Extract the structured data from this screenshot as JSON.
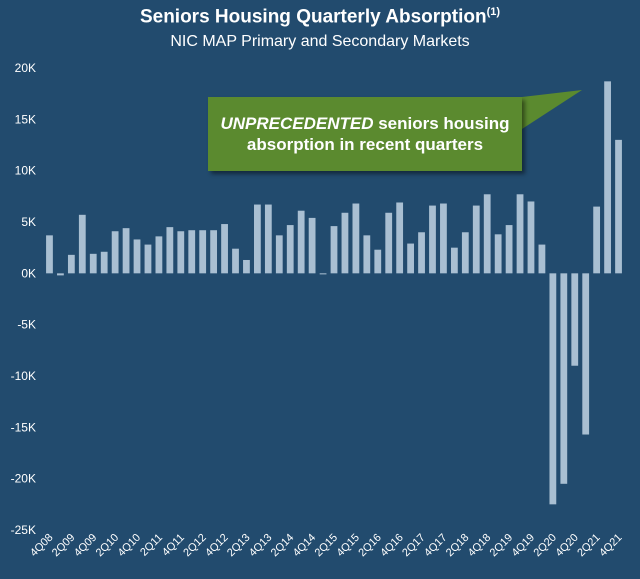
{
  "title": "Seniors Housing Quarterly Absorption",
  "title_note": "(1)",
  "subtitle": "NIC MAP Primary and Secondary Markets",
  "callout": {
    "emphasis": "UNPRECEDENTED",
    "line1_rest": " seniors housing",
    "line2": "absorption in recent quarters"
  },
  "colors": {
    "background": "#224b6e",
    "bar": "#a9bfd2",
    "callout": "#5b8a2f",
    "axis_text": "#ffffff"
  },
  "chart_data": {
    "type": "bar",
    "title": "Seniors Housing Quarterly Absorption",
    "subtitle": "NIC MAP Primary and Secondary Markets",
    "xlabel": "",
    "ylabel": "",
    "ylim": [
      -25000,
      20000
    ],
    "yticks": [
      20000,
      15000,
      10000,
      5000,
      0,
      -5000,
      -10000,
      -15000,
      -20000,
      -25000
    ],
    "ytick_labels": [
      "20K",
      "15K",
      "10K",
      "5K",
      "0K",
      "-5K",
      "-10K",
      "-15K",
      "-20K",
      "-25K"
    ],
    "grid": false,
    "legend": "none",
    "categories": [
      "4Q08",
      "1Q09",
      "2Q09",
      "3Q09",
      "4Q09",
      "1Q10",
      "2Q10",
      "3Q10",
      "4Q10",
      "1Q11",
      "2Q11",
      "3Q11",
      "4Q11",
      "1Q12",
      "2Q12",
      "3Q12",
      "4Q12",
      "1Q13",
      "2Q13",
      "3Q13",
      "4Q13",
      "1Q14",
      "2Q14",
      "3Q14",
      "4Q14",
      "1Q15",
      "2Q15",
      "3Q15",
      "4Q15",
      "1Q16",
      "2Q16",
      "3Q16",
      "4Q16",
      "1Q17",
      "2Q17",
      "3Q17",
      "4Q17",
      "1Q18",
      "2Q18",
      "3Q18",
      "4Q18",
      "1Q19",
      "2Q19",
      "3Q19",
      "4Q19",
      "1Q20",
      "2Q20",
      "3Q20",
      "4Q20",
      "1Q21",
      "2Q21",
      "3Q21",
      "4Q21"
    ],
    "visible_tick_labels": [
      "4Q08",
      "2Q09",
      "4Q09",
      "2Q10",
      "4Q10",
      "2Q11",
      "4Q11",
      "2Q12",
      "4Q12",
      "2Q13",
      "4Q13",
      "2Q14",
      "4Q14",
      "2Q15",
      "4Q15",
      "2Q16",
      "4Q16",
      "2Q17",
      "4Q17",
      "2Q18",
      "4Q18",
      "2Q19",
      "4Q19",
      "2Q20",
      "4Q20",
      "2Q21",
      "4Q21"
    ],
    "values": [
      3700,
      -200,
      1800,
      5700,
      1900,
      2100,
      4100,
      4400,
      3300,
      2800,
      3600,
      4500,
      4100,
      4200,
      4200,
      4200,
      4800,
      2400,
      1300,
      6700,
      6700,
      3700,
      4700,
      6100,
      5400,
      -100,
      4600,
      5900,
      6800,
      3700,
      2300,
      5900,
      6900,
      2900,
      4000,
      6600,
      6800,
      2500,
      4000,
      6600,
      7700,
      3800,
      4700,
      7700,
      7000,
      2800,
      -22500,
      -20500,
      -9000,
      -15700,
      6500,
      18700,
      13000
    ]
  }
}
